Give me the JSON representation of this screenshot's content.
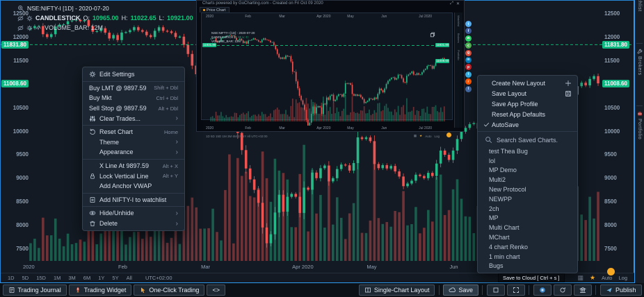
{
  "chart_data": {
    "type": "candlestick",
    "symbol_line": "NSE:NIFTY-I [1D] - 2020-07-20",
    "candle_legend": "CANDLESTICK",
    "ohlc": {
      "o_label": "O:",
      "o": "10965.00",
      "h_label": "H:",
      "h": "11022.65",
      "l_label": "L:",
      "l": "10921.00",
      "c_label": "C:",
      "c": "11008.60"
    },
    "volume_legend": "VOLUME_BAR: 12M",
    "alert_price": 11831.8,
    "alert_price_label": "11831.80",
    "last_price": 11008.6,
    "last_price_label": "11008.60",
    "y_ticks": [
      12500,
      12000,
      11500,
      10500,
      10000,
      9500,
      9000,
      8500,
      8000,
      7500
    ],
    "y_range": [
      7500,
      12500
    ],
    "x_labels": [
      {
        "label": "2020",
        "idx": 0
      },
      {
        "label": "Feb",
        "idx": 23
      },
      {
        "label": "Mar",
        "idx": 43
      },
      {
        "label": "Apr 2020",
        "idx": 65
      },
      {
        "label": "May",
        "idx": 83
      },
      {
        "label": "Jun",
        "idx": 103
      },
      {
        "label": "Jul 2020",
        "idx": 125
      }
    ],
    "closes": [
      12182,
      12226,
      12227,
      12053,
      11993,
      12053,
      12216,
      12257,
      12263,
      12329,
      12343,
      12362,
      12328,
      12352,
      12224,
      12107,
      12119,
      12180,
      12086,
      11962,
      12036,
      11929,
      12089,
      12098,
      12138,
      12202,
      12138,
      12107,
      12032,
      11993,
      12126,
      12201,
      12126,
      12113,
      12081,
      11993,
      12001,
      11829,
      11633,
      11386,
      11202,
      11133,
      11202,
      11132,
      11303,
      11251,
      11269,
      10989,
      10458,
      10451,
      9955,
      9590,
      9199,
      8967,
      8745,
      8469,
      7945,
      7610,
      7801,
      8263,
      8641,
      8281,
      8597,
      8660,
      8598,
      8254,
      8792,
      8748,
      9112,
      8993,
      9205,
      9262,
      8925,
      8993,
      9187,
      9282,
      9267,
      9154,
      9314,
      9860,
      9826,
      9859,
      9780,
      9294,
      9206,
      9270,
      9199,
      9252,
      9137,
      9028,
      8823,
      8879,
      8939,
      9067,
      9039,
      8993,
      9106,
      9039,
      9304,
      9580,
      9490,
      9381,
      9580,
      9826,
      9980,
      10062,
      10142,
      10167,
      10047,
      10116,
      10305,
      10279,
      10116,
      9914,
      9881,
      10244,
      10312,
      10383,
      10471,
      10312,
      10289,
      10383,
      10302,
      10312,
      10430,
      10552,
      10607,
      10764,
      10800,
      10768,
      10618,
      10768,
      10948,
      11022,
      10966,
      11102,
      11162,
      11008.6
    ],
    "up_color": "#26b887",
    "down_color": "#ee5451",
    "alert_line_color": "#0ecb7d"
  },
  "popup": {
    "titlebar": "Charts powered by GoCharting.com - Created on Fri Oct 09 2020",
    "tab_label": "Price Chart",
    "controls": {
      "expand": "⤢",
      "close": "✕"
    },
    "auto_label": "Auto",
    "log_label": "Log",
    "timeframes_line": "1D  5D  15D  1M  3M  6M  1Y  5Y  All    UTC+02:00"
  },
  "share_icons": [
    {
      "name": "twitter",
      "color": "#55acee",
      "glyph": "t"
    },
    {
      "name": "facebook",
      "color": "#3b5998",
      "glyph": "f"
    },
    {
      "name": "whatsapp",
      "color": "#25d366",
      "glyph": "w"
    },
    {
      "name": "wechat",
      "color": "#4caf50",
      "glyph": "c"
    },
    {
      "name": "google-plus",
      "color": "#dd4b39",
      "glyph": "g"
    },
    {
      "name": "linkedin",
      "color": "#0077b5",
      "glyph": "in"
    },
    {
      "name": "pinterest",
      "color": "#cb2027",
      "glyph": "p"
    },
    {
      "name": "telegram",
      "color": "#37aee2",
      "glyph": "t"
    },
    {
      "name": "reddit",
      "color": "#ff5700",
      "glyph": "r"
    },
    {
      "name": "tumblr",
      "color": "#456ca8",
      "glyph": "t"
    }
  ],
  "context_menu": {
    "sections": [
      [
        {
          "icon": "gear",
          "label": "Edit Settings"
        }
      ],
      [
        {
          "label": "Buy LMT @ 9897.59",
          "hint": "Shift + Dbl"
        },
        {
          "label": "Buy Mkt",
          "hint": "Ctrl + Dbl"
        },
        {
          "label": "Sell Stop @ 9897.59",
          "hint": "Alt + Dbl"
        },
        {
          "icon": "sliders",
          "label": "Clear Trades...",
          "hint": "›"
        }
      ],
      [
        {
          "icon": "reset",
          "label": "Reset Chart",
          "hint": "Home"
        },
        {
          "label": "Theme",
          "hint": "›",
          "indent": true
        },
        {
          "label": "Appearance",
          "hint": "›",
          "indent": true
        }
      ],
      [
        {
          "label": "X Line At 9897.59",
          "hint": "Alt + X",
          "indent": true
        },
        {
          "icon": "lock",
          "label": "Lock Vertical Line",
          "hint": "Alt + Y"
        },
        {
          "label": "Add Anchor VWAP",
          "indent": true
        }
      ],
      [
        {
          "icon": "watchlist",
          "label": "Add NIFTY-I to watchlist"
        }
      ],
      [
        {
          "icon": "eye",
          "label": "Hide/Unhide",
          "hint": "›"
        },
        {
          "icon": "trash",
          "label": "Delete",
          "hint": "›"
        }
      ]
    ]
  },
  "layout_menu": {
    "items": [
      {
        "label": "Create New Layout",
        "right_icon": "plus"
      },
      {
        "label": "Save Layout",
        "right_icon": "floppy"
      },
      {
        "label": "Save App Profile"
      },
      {
        "label": "Reset App Defaults"
      },
      {
        "label": "AutoSave",
        "checked": true
      }
    ],
    "search_placeholder": "Search Saved Charts.",
    "saved_charts": [
      "test Thea Bug",
      "lol",
      "MP Demo",
      "Multi2",
      "New Protocol",
      "NEWPP",
      "2ch",
      "MP",
      "Multi Chart",
      "MChart",
      "4 chart Renko",
      "1 min chart",
      "Bugs"
    ]
  },
  "timeframe_bar": {
    "timeframes": [
      "1D",
      "5D",
      "15D",
      "1M",
      "3M",
      "6M",
      "1Y",
      "5Y",
      "All"
    ],
    "timezone": "UTC+02:00",
    "auto_label": "Auto",
    "log_label": "Log"
  },
  "tooltip": "Save to Cloud [ Ctrl + s ]",
  "sidebar": {
    "tabs": [
      "Watchlist",
      "Brokers",
      "Portfolio"
    ]
  },
  "bottom_bar": {
    "left": [
      {
        "icon": "journal",
        "label": "Trading Journal"
      },
      {
        "icon": "rocket",
        "label": "Trading Widget"
      },
      {
        "icon": "pointer",
        "label": "One-Click Trading"
      },
      {
        "label": "<>"
      }
    ],
    "right": [
      {
        "icon": "layout",
        "label": "Single-Chart Layout"
      },
      {
        "sep": true
      },
      {
        "icon": "cloud",
        "label": "Save",
        "active": true
      },
      {
        "sep": true
      },
      {
        "icon": "squareo"
      },
      {
        "icon": "expand"
      },
      {
        "sep": true
      },
      {
        "icon": "camera"
      },
      {
        "icon": "refresh"
      },
      {
        "icon": "bank"
      },
      {
        "sep": true
      },
      {
        "icon": "publish",
        "label": "Publish"
      }
    ]
  }
}
